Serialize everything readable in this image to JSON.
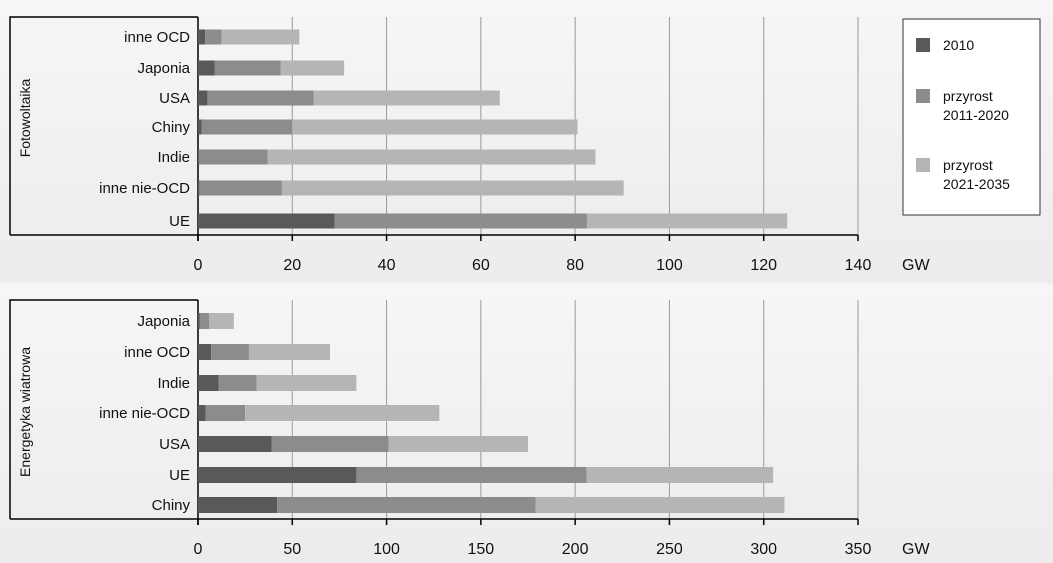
{
  "chart_data": [
    {
      "type": "bar",
      "orientation": "horizontal",
      "stacked": true,
      "ylabel": "Fotowoltaika",
      "unit": "GW",
      "xlim": [
        0,
        140
      ],
      "xticks": [
        0,
        20,
        40,
        60,
        80,
        100,
        120,
        140
      ],
      "categories": [
        "inne OCD",
        "Japonia",
        "USA",
        "Chiny",
        "Indie",
        "inne nie-OCD",
        "UE"
      ],
      "series": [
        {
          "name": "2010",
          "values": [
            1.5,
            3.5,
            2.0,
            0.8,
            0.2,
            0.3,
            29
          ]
        },
        {
          "name": "przyrost 2011-2020",
          "values": [
            3.5,
            14,
            22.5,
            19.2,
            14.6,
            17.5,
            53.5
          ]
        },
        {
          "name": "przyrost 2021-2035",
          "values": [
            16.5,
            13.5,
            39.5,
            60.5,
            69.5,
            72.5,
            42.5
          ]
        }
      ]
    },
    {
      "type": "bar",
      "orientation": "horizontal",
      "stacked": true,
      "ylabel": "Energetyka wiatrowa",
      "unit": "GW",
      "xlim": [
        0,
        350
      ],
      "xticks": [
        0,
        50,
        100,
        150,
        200,
        250,
        300,
        350
      ],
      "categories": [
        "Japonia",
        "inne OCD",
        "Indie",
        "inne nie-OCD",
        "USA",
        "UE",
        "Chiny"
      ],
      "series": [
        {
          "name": "2010",
          "values": [
            1,
            7,
            11,
            4,
            39,
            84,
            42
          ]
        },
        {
          "name": "przyrost 2011-2020",
          "values": [
            5,
            20,
            20,
            21,
            62,
            122,
            137
          ]
        },
        {
          "name": "przyrost 2021-2035",
          "values": [
            13,
            43,
            53,
            103,
            74,
            99,
            132
          ]
        }
      ]
    }
  ],
  "legend": {
    "position": "right",
    "items": [
      {
        "label_lines": [
          "2010"
        ],
        "color": "#595959"
      },
      {
        "label_lines": [
          "przyrost",
          "2011-2020"
        ],
        "color": "#8c8c8c"
      },
      {
        "label_lines": [
          "przyrost",
          "2021-2035"
        ],
        "color": "#b5b5b5"
      }
    ]
  },
  "colors": {
    "series": [
      "#595959",
      "#8c8c8c",
      "#b5b5b5"
    ],
    "grid": "#999999",
    "axis": "#000000"
  }
}
